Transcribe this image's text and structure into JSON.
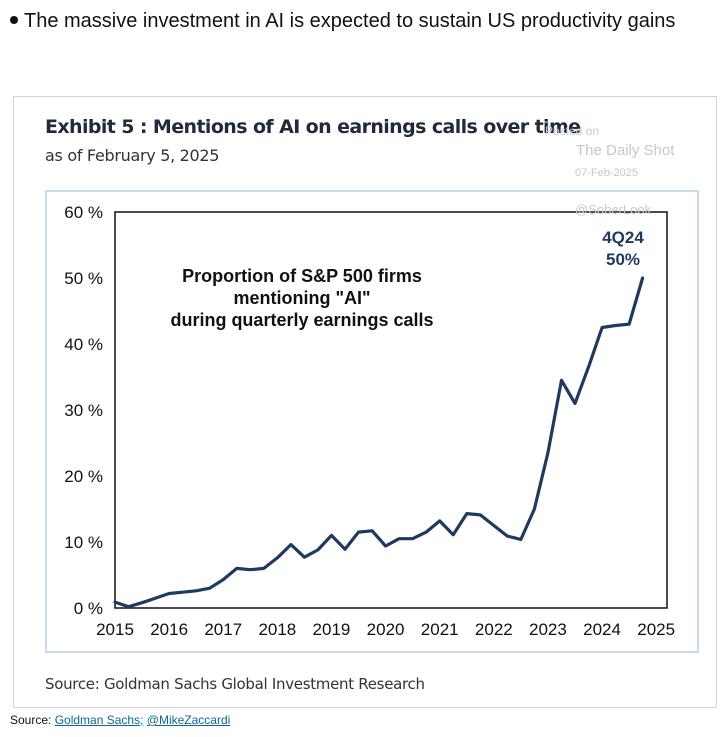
{
  "headline": "The massive investment in AI is expected to sustain US productivity gains",
  "exhibit": {
    "title": "Exhibit 5 : Mentions of AI on earnings calls over time",
    "subtitle": "as of February 5, 2025",
    "source": "Source: Goldman Sachs Global Investment Research"
  },
  "watermark": {
    "posted_on": "Posted on",
    "name": "The Daily Shot",
    "date": "07-Feb-2025",
    "handle": "@SoberLook"
  },
  "footer": {
    "label": "Source:",
    "link1": "Goldman Sachs;",
    "link2": "@MikeZaccardi"
  },
  "colors": {
    "line": "#1f3a5f",
    "frame": "#c8dcee"
  },
  "chart_data": {
    "type": "line",
    "title": "",
    "annotation": [
      "Proportion of S&P 500 firms",
      "mentioning \"AI\"",
      "during quarterly earnings calls"
    ],
    "end_label": [
      "4Q24",
      "50%"
    ],
    "xlabel": "",
    "ylabel": "",
    "x_ticks": [
      "2015",
      "2016",
      "2017",
      "2018",
      "2019",
      "2020",
      "2021",
      "2022",
      "2023",
      "2024",
      "2025"
    ],
    "y_ticks": [
      "0 %",
      "10 %",
      "20 %",
      "30 %",
      "40 %",
      "50 %",
      "60 %"
    ],
    "xlim": [
      2015,
      2025.2
    ],
    "ylim": [
      0,
      60
    ],
    "grid": false,
    "series": [
      {
        "x": [
          2015.0,
          2015.25,
          2015.5,
          2015.75,
          2016.0,
          2016.25,
          2016.5,
          2016.75,
          2017.0,
          2017.25,
          2017.5,
          2017.75,
          2018.0,
          2018.25,
          2018.5,
          2018.75,
          2019.0,
          2019.25,
          2019.5,
          2019.75,
          2020.0,
          2020.25,
          2020.5,
          2020.75,
          2021.0,
          2021.25,
          2021.5,
          2021.75,
          2022.0,
          2022.25,
          2022.5,
          2022.75,
          2023.0,
          2023.25,
          2023.5,
          2023.75,
          2024.0,
          2024.25,
          2024.5,
          2024.75
        ],
        "y": [
          0.9,
          0.2,
          0.8,
          1.5,
          2.2,
          2.4,
          2.6,
          3.0,
          4.3,
          6.0,
          5.8,
          6.0,
          7.6,
          9.6,
          7.7,
          8.8,
          11.0,
          8.9,
          11.5,
          11.7,
          9.4,
          10.5,
          10.5,
          11.5,
          13.2,
          11.1,
          14.3,
          14.1,
          12.5,
          10.9,
          10.4,
          15.0,
          23.5,
          34.5,
          31.0,
          36.5,
          42.5,
          42.8,
          43.0,
          50.0
        ]
      }
    ]
  }
}
